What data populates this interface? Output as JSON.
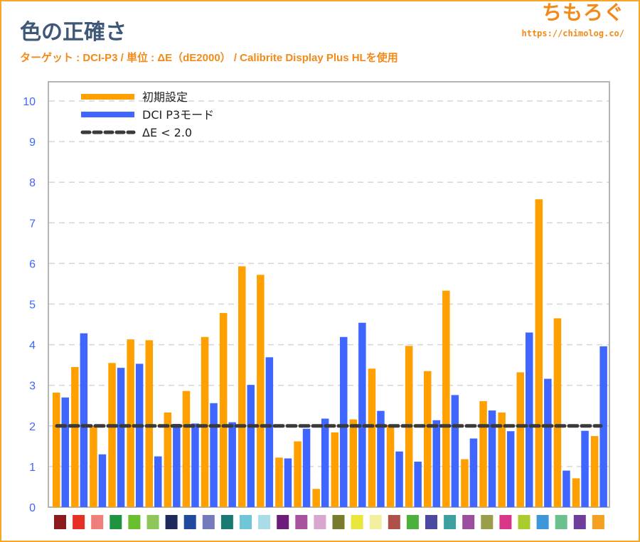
{
  "header": {
    "title": "色の正確さ",
    "subtitle": "ターゲット : DCI-P3 / 単位 : ΔE（dE2000） / Calibrite Display Plus HLを使用",
    "logo": "ちもろぐ",
    "url": "https://chimolog.co/"
  },
  "colors": {
    "orange": "#ffa000",
    "blue": "#3f66ff",
    "threshold": "#3a3a3a",
    "title": "#3f5877",
    "accent": "#f28a1a",
    "tick": "#3f66ff"
  },
  "chart_data": {
    "type": "bar",
    "title": "色の正確さ",
    "xlabel": "",
    "ylabel": "ΔE",
    "ylim": [
      0,
      10
    ],
    "yticks": [
      0,
      1,
      2,
      3,
      4,
      5,
      6,
      7,
      8,
      9,
      10
    ],
    "grid": true,
    "legend_position": "top-left",
    "categories": [
      "#8b1a1f",
      "#e63025",
      "#ef7f7a",
      "#1f9440",
      "#6abf2f",
      "#8ec65a",
      "#1f2a5c",
      "#1f4a9e",
      "#7579bd",
      "#1a7a72",
      "#6ec6d6",
      "#a8dce6",
      "#6c1c7a",
      "#a9529e",
      "#d9a6cf",
      "#787a2c",
      "#e9e63c",
      "#f2eea0",
      "#b0504a",
      "#4cb03c",
      "#4b4aa0",
      "#3ea09e",
      "#9a4f9e",
      "#9a9e4a",
      "#d9388a",
      "#aacb2c",
      "#3e97d9",
      "#6cc08e",
      "#6e3e9a",
      "#f5a020"
    ],
    "series": [
      {
        "name": "初期設定",
        "color": "#ffa000",
        "values": [
          2.82,
          3.45,
          2.0,
          3.55,
          4.13,
          4.11,
          2.33,
          2.86,
          4.19,
          4.78,
          5.93,
          5.72,
          1.22,
          1.62,
          0.45,
          1.84,
          2.16,
          3.41,
          2.03,
          3.97,
          3.35,
          5.33,
          1.18,
          2.61,
          2.33,
          3.32,
          7.58,
          4.65,
          0.71,
          1.75
        ]
      },
      {
        "name": "DCI P3モード",
        "color": "#3f66ff",
        "values": [
          2.7,
          4.28,
          1.3,
          3.43,
          3.53,
          1.25,
          2.05,
          2.06,
          2.56,
          2.09,
          3.01,
          3.69,
          1.2,
          1.93,
          2.18,
          4.19,
          4.54,
          2.37,
          1.37,
          1.12,
          2.14,
          2.76,
          1.69,
          2.38,
          1.87,
          4.3,
          3.16,
          0.9,
          1.88,
          3.96
        ]
      }
    ],
    "threshold": {
      "name": "ΔE < 2.0",
      "value": 2.0
    }
  }
}
